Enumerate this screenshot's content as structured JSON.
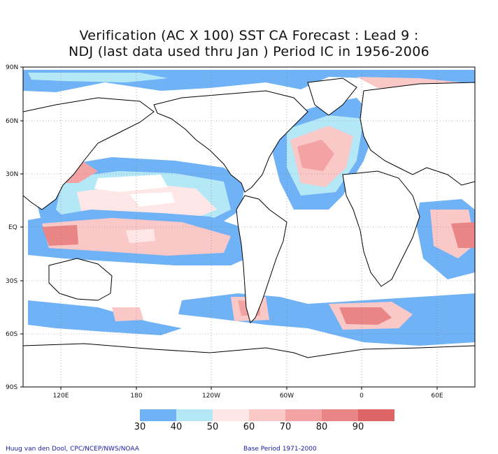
{
  "title": {
    "line1": "Verification (AC X 100) SST CA Forecast : Lead 9 :",
    "line2": "NDJ (last data used thru Jan ) Period IC in 1956-2006"
  },
  "map": {
    "lat_labels": [
      "90N",
      "60N",
      "30N",
      "EQ",
      "30S",
      "60S",
      "90S"
    ],
    "lon_labels": [
      "120E",
      "180",
      "120W",
      "60W",
      "0",
      "60E"
    ]
  },
  "legend": {
    "colors": [
      "#6fb2f5",
      "#b5e8f7",
      "#ffe7e7",
      "#fbc8c8",
      "#f3a3a3",
      "#e98585",
      "#de6565"
    ],
    "labels": [
      "30",
      "40",
      "50",
      "60",
      "70",
      "80",
      "90"
    ]
  },
  "footer": {
    "left": "Huug van den Dool, CPC/NCEP/NWS/NOAA",
    "right": "Base Period 1971-2000"
  }
}
